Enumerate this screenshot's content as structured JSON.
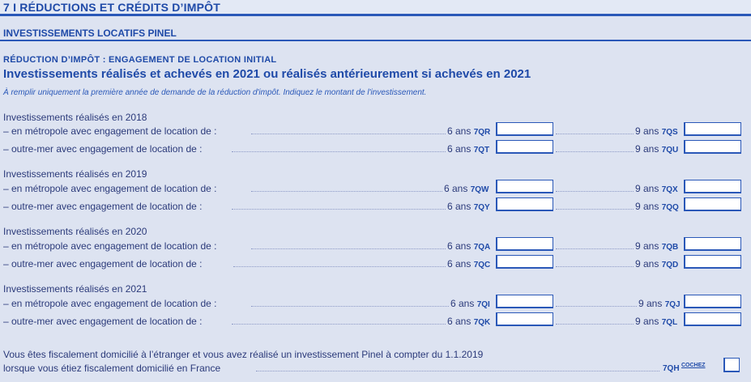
{
  "section": {
    "title": "7 I RÉDUCTIONS ET CRÉDITS D’IMPÔT"
  },
  "subsection": {
    "title": "INVESTISSEMENTS LOCATIFS  PINEL"
  },
  "block": {
    "heading": "RÉDUCTION D’IMPÔT : ENGAGEMENT DE LOCATION INITIAL",
    "title": "Investissements réalisés et achevés en 2021 ou réalisés antérieurement si achevés en 2021",
    "note": "À remplir uniquement la première année de demande de la réduction d'impôt. Indiquez le montant de l'investissement."
  },
  "groups": [
    {
      "title": "Investissements réalisés en 2018",
      "rows": [
        {
          "label": "– en métropole avec engagement de location de :",
          "dur1": "6 ans",
          "code1": "7QR",
          "value1": "",
          "dur2": "9 ans",
          "code2": "7QS",
          "value2": ""
        },
        {
          "label": "– outre-mer avec engagement de location de :",
          "dur1": "6 ans",
          "code1": "7QT",
          "value1": "",
          "dur2": "9 ans",
          "code2": "7QU",
          "value2": ""
        }
      ]
    },
    {
      "title": "Investissements réalisés en 2019",
      "rows": [
        {
          "label": "– en métropole avec engagement de location de :",
          "dur1": "6 ans",
          "code1": "7QW",
          "value1": "",
          "dur2": "9 ans",
          "code2": "7QX",
          "value2": ""
        },
        {
          "label": "– outre-mer avec engagement de location de :",
          "dur1": "6 ans",
          "code1": "7QY",
          "value1": "",
          "dur2": "9 ans",
          "code2": "7QQ",
          "value2": ""
        }
      ]
    },
    {
      "title": "Investissements réalisés en 2020",
      "rows": [
        {
          "label": "– en métropole avec engagement de location de :",
          "dur1": "6 ans",
          "code1": "7QA",
          "value1": "",
          "dur2": "9 ans",
          "code2": "7QB",
          "value2": ""
        },
        {
          "label": "– outre-mer avec engagement de location de :",
          "dur1": "6 ans",
          "code1": "7QC",
          "value1": "",
          "dur2": "9 ans",
          "code2": "7QD",
          "value2": ""
        }
      ]
    },
    {
      "title": "Investissements réalisés en 2021",
      "rows": [
        {
          "label": "– en métropole avec engagement de location de :",
          "dur1": "6 ans",
          "code1": "7QI",
          "value1": "",
          "dur2": "9 ans",
          "code2": "7QJ",
          "value2": ""
        },
        {
          "label": "– outre-mer avec engagement de location de :",
          "dur1": "6 ans",
          "code1": "7QK",
          "value1": "",
          "dur2": "9 ans",
          "code2": "7QL",
          "value2": ""
        }
      ]
    }
  ],
  "footer": {
    "line1": "Vous êtes fiscalement domicilié à l’étranger et vous avez réalisé un investissement Pinel à compter du 1.1.2019",
    "line2": "lorsque vous étiez fiscalement domicilié en France",
    "code": "7QH",
    "cochez": "COCHEZ",
    "checked": false
  }
}
